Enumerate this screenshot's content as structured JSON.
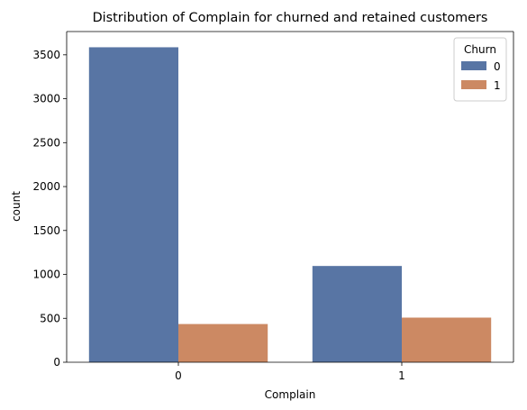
{
  "chart_data": {
    "type": "bar",
    "title": "Distribution of Complain for churned and retained customers",
    "xlabel": "Complain",
    "ylabel": "count",
    "categories": [
      "0",
      "1"
    ],
    "series": [
      {
        "name": "0",
        "color": "#5875a4",
        "values": [
          3586,
          1096
        ]
      },
      {
        "name": "1",
        "color": "#cc8963",
        "values": [
          435,
          508
        ]
      }
    ],
    "ylim": [
      0,
      3765
    ],
    "yticks": [
      0,
      500,
      1000,
      1500,
      2000,
      2500,
      3000,
      3500
    ],
    "legend": {
      "title": "Churn",
      "placement": "top-right"
    },
    "grid": false
  }
}
